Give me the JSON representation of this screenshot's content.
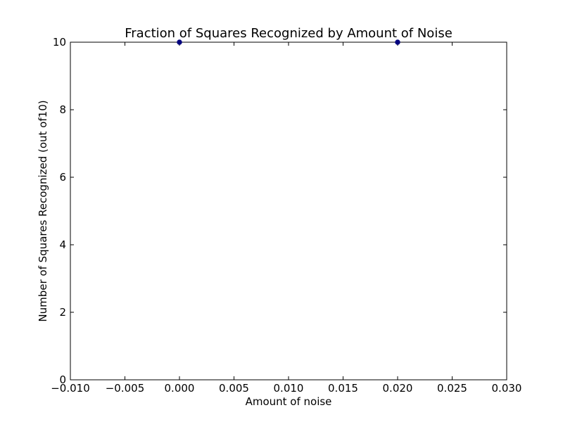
{
  "chart_data": {
    "type": "scatter",
    "title": "Fraction of Squares Recognized by Amount of Noise",
    "xlabel": "Amount of noise",
    "ylabel": "Number of Squares Recognized (out of10)",
    "xlim": [
      -0.01,
      0.03
    ],
    "ylim": [
      0,
      10
    ],
    "xticks": [
      -0.01,
      -0.005,
      0.0,
      0.005,
      0.01,
      0.015,
      0.02,
      0.025,
      0.03
    ],
    "xtick_labels": [
      "−0.010",
      "−0.005",
      "0.000",
      "0.005",
      "0.010",
      "0.015",
      "0.020",
      "0.025",
      "0.030"
    ],
    "yticks": [
      0,
      2,
      4,
      6,
      8,
      10
    ],
    "ytick_labels": [
      "0",
      "2",
      "4",
      "6",
      "8",
      "10"
    ],
    "series": [
      {
        "x": [
          0.0,
          0.02
        ],
        "y": [
          10,
          10
        ],
        "color": "#00007f"
      }
    ],
    "grid": false,
    "frame_color": "#000000"
  }
}
